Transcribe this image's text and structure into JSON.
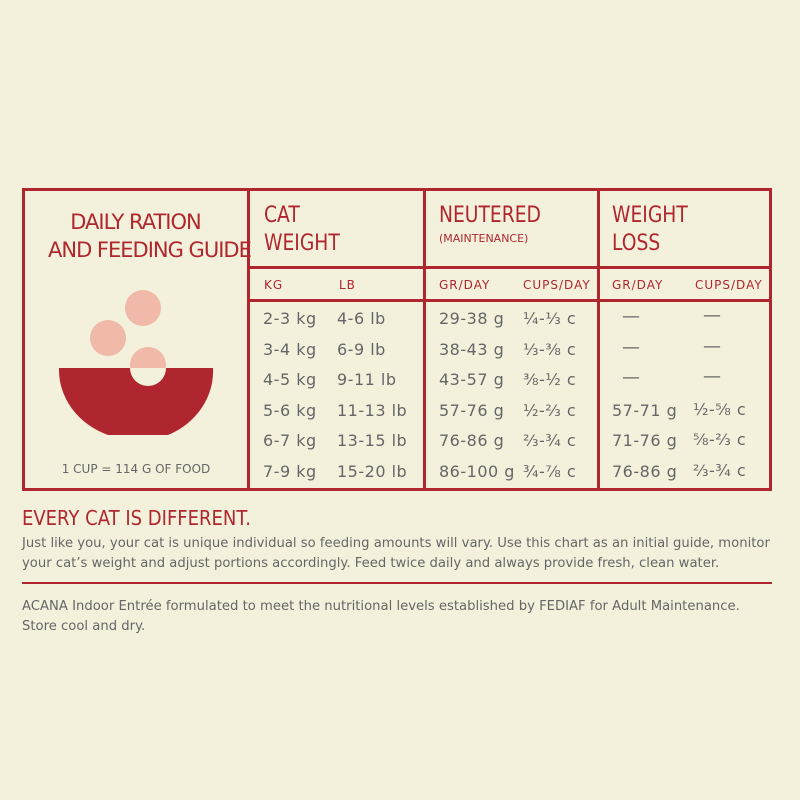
{
  "colors": {
    "accent": "#b0262e",
    "pink": "#f0b9a8",
    "background": "#f3f1dc",
    "text": "#666666"
  },
  "left_panel": {
    "title_line1": "DAILY RATION",
    "title_line2": "AND FEEDING GUIDE",
    "icon": "bowl-with-kibble-icon",
    "cup_note": "1 CUP = 114 G OF FOOD"
  },
  "headers": {
    "cat_weight": {
      "line1": "CAT",
      "line2": "WEIGHT",
      "sub": [
        "KG",
        "LB"
      ]
    },
    "neutered": {
      "line1": "NEUTERED",
      "line2": "(MAINTENANCE)",
      "sub": [
        "GR/DAY",
        "CUPS/DAY"
      ]
    },
    "weight_loss": {
      "line1": "WEIGHT",
      "line2": "LOSS",
      "sub": [
        "GR/DAY",
        "CUPS/DAY"
      ]
    }
  },
  "rows": [
    {
      "kg": "2-3 kg",
      "lb": "4-6 lb",
      "n_gr": "29-38 g",
      "n_cups": "¼-⅓ c",
      "w_gr": "—",
      "w_cups": "—"
    },
    {
      "kg": "3-4 kg",
      "lb": "6-9 lb",
      "n_gr": "38-43 g",
      "n_cups": "⅓-⅜ c",
      "w_gr": "—",
      "w_cups": "—"
    },
    {
      "kg": "4-5 kg",
      "lb": "9-11 lb",
      "n_gr": "43-57 g",
      "n_cups": "⅜-½ c",
      "w_gr": "—",
      "w_cups": "—"
    },
    {
      "kg": "5-6 kg",
      "lb": "11-13 lb",
      "n_gr": "57-76 g",
      "n_cups": "½-⅔ c",
      "w_gr": "57-71 g",
      "w_cups": "½-⅝ c"
    },
    {
      "kg": "6-7 kg",
      "lb": "13-15 lb",
      "n_gr": "76-86 g",
      "n_cups": "⅔-¾ c",
      "w_gr": "71-76 g",
      "w_cups": "⅝-⅔ c"
    },
    {
      "kg": "7-9 kg",
      "lb": "15-20 lb",
      "n_gr": "86-100 g",
      "n_cups": "¾-⅞ c",
      "w_gr": "76-86 g",
      "w_cups": "⅔-¾ c"
    }
  ],
  "every_cat": {
    "heading": "EVERY CAT IS DIFFERENT.",
    "body": "Just like you, your cat is unique individual so feeding amounts will vary. Use this chart as an initial guide, monitor your cat’s weight and adjust portions accordingly. Feed twice daily and always provide fresh, clean water."
  },
  "footer": {
    "line1": "ACANA Indoor Entrée formulated to meet the nutritional levels established by FEDIAF  for Adult Maintenance.",
    "line2": "Store cool and dry."
  }
}
